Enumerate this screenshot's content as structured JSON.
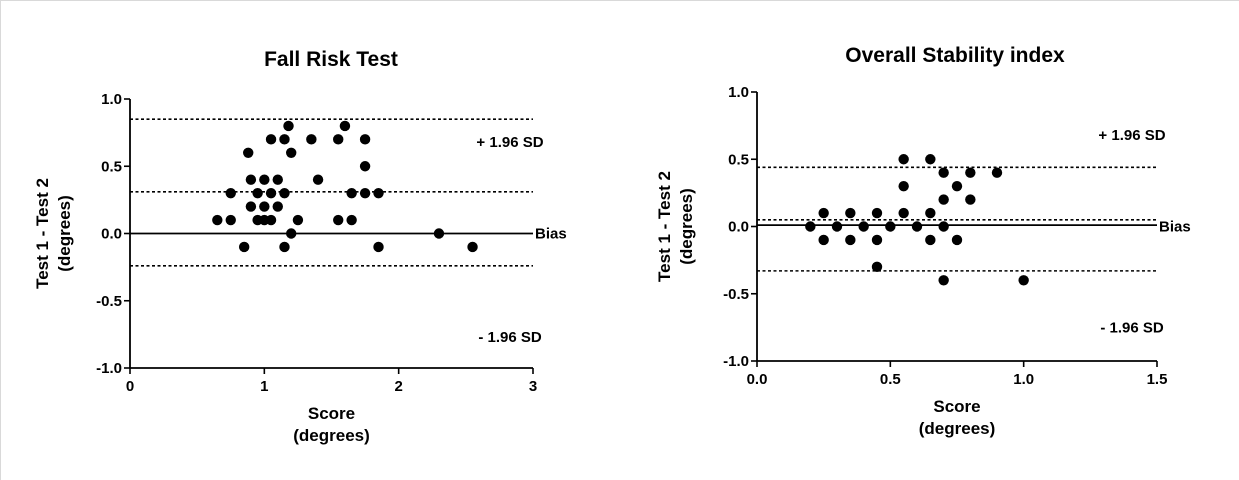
{
  "chart_data": [
    {
      "type": "scatter",
      "title": "Fall Risk Test",
      "xlabel_lines": [
        "Score",
        "(degrees)"
      ],
      "ylabel_lines": [
        "Test 1 - Test 2",
        "(degrees)"
      ],
      "xlim": [
        0,
        3
      ],
      "ylim": [
        -1.0,
        1.0
      ],
      "xticks": [
        0,
        1,
        2,
        3
      ],
      "xtick_labels": [
        "0",
        "1",
        "2",
        "3"
      ],
      "yticks": [
        -1.0,
        -0.5,
        0.0,
        0.5,
        1.0
      ],
      "ytick_labels": [
        "-1.0",
        "-0.5",
        "0.0",
        "0.5",
        "1.0"
      ],
      "grid": false,
      "reference_lines": [
        {
          "name": "+ 1.96 SD",
          "y": 0.85,
          "style": "dashed",
          "label": "+ 1.96 SD",
          "label_y": 0.68
        },
        {
          "name": "bias-mean",
          "y": 0.31,
          "style": "dashed",
          "label": "",
          "label_y": null
        },
        {
          "name": "zero",
          "y": 0.0,
          "style": "solid",
          "label": "Bias",
          "label_y": 0.0
        },
        {
          "name": "- 1.96 SD",
          "y": -0.24,
          "style": "dashed",
          "label": "- 1.96 SD",
          "label_y": -0.77
        }
      ],
      "x": [
        0.65,
        0.75,
        0.75,
        0.85,
        0.88,
        0.9,
        0.9,
        0.95,
        0.95,
        1.0,
        1.0,
        1.0,
        1.05,
        1.05,
        1.05,
        1.1,
        1.1,
        1.15,
        1.15,
        1.15,
        1.18,
        1.2,
        1.2,
        1.25,
        1.35,
        1.4,
        1.55,
        1.55,
        1.6,
        1.65,
        1.65,
        1.75,
        1.75,
        1.75,
        1.85,
        1.85,
        2.3,
        2.55
      ],
      "y": [
        0.1,
        0.3,
        0.1,
        -0.1,
        0.6,
        0.4,
        0.2,
        0.3,
        0.1,
        0.4,
        0.2,
        0.1,
        0.7,
        0.3,
        0.1,
        0.4,
        0.2,
        0.7,
        0.3,
        -0.1,
        0.8,
        0.6,
        0.0,
        0.1,
        0.7,
        0.4,
        0.7,
        0.1,
        0.8,
        0.3,
        0.1,
        0.7,
        0.5,
        0.3,
        0.3,
        -0.1,
        0.0,
        -0.1
      ]
    },
    {
      "type": "scatter",
      "title": "Overall Stability index",
      "xlabel_lines": [
        "Score",
        "(degrees)"
      ],
      "ylabel_lines": [
        "Test 1 - Test 2",
        "(degrees)"
      ],
      "xlim": [
        0,
        1.5
      ],
      "ylim": [
        -1.0,
        1.0
      ],
      "xticks": [
        0,
        0.5,
        1.0,
        1.5
      ],
      "xtick_labels": [
        "0.0",
        "0.5",
        "1.0",
        "1.5"
      ],
      "yticks": [
        -1.0,
        -0.5,
        0.0,
        0.5,
        1.0
      ],
      "ytick_labels": [
        "-1.0",
        "-0.5",
        "0.0",
        "0.5",
        "1.0"
      ],
      "grid": false,
      "reference_lines": [
        {
          "name": "+ 1.96 SD",
          "y": 0.44,
          "style": "dashed",
          "label": "+ 1.96 SD",
          "label_y": 0.68
        },
        {
          "name": "bias-mean",
          "y": 0.05,
          "style": "dashed",
          "label": "",
          "label_y": null
        },
        {
          "name": "zero",
          "y": 0.01,
          "style": "solid",
          "label": "Bias",
          "label_y": 0.0
        },
        {
          "name": "- 1.96 SD",
          "y": -0.33,
          "style": "dashed",
          "label": "- 1.96 SD",
          "label_y": -0.75
        }
      ],
      "x": [
        0.2,
        0.25,
        0.25,
        0.3,
        0.35,
        0.35,
        0.4,
        0.45,
        0.45,
        0.45,
        0.5,
        0.55,
        0.55,
        0.55,
        0.6,
        0.65,
        0.65,
        0.65,
        0.7,
        0.7,
        0.7,
        0.7,
        0.75,
        0.75,
        0.8,
        0.8,
        0.9,
        1.0
      ],
      "y": [
        0.0,
        0.1,
        -0.1,
        0.0,
        0.1,
        -0.1,
        0.0,
        0.1,
        -0.1,
        -0.3,
        0.0,
        0.5,
        0.3,
        0.1,
        0.0,
        0.5,
        0.1,
        -0.1,
        0.4,
        0.2,
        0.0,
        -0.4,
        0.3,
        -0.1,
        0.4,
        0.2,
        0.4,
        -0.4
      ]
    }
  ]
}
